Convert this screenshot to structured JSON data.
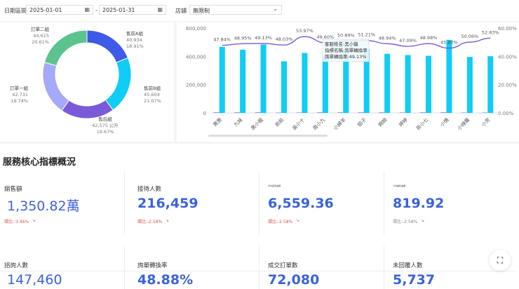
{
  "filter": {
    "date_label": "日期區間",
    "start_date": "2025-01-01",
    "separator": "-",
    "end_date": "2025-01-31",
    "store_label": "店鋪",
    "store_value": "無限制"
  },
  "donut": {
    "segments": [
      {
        "name": "售前A組",
        "value": "40,934",
        "pct": "18.91%",
        "p": 18.91,
        "color": "#3d5be8"
      },
      {
        "name": "售前B組",
        "value": "45,604",
        "pct": "21.07%",
        "p": 21.07,
        "color": "#0fcdf5"
      },
      {
        "name": "售后組",
        "value": "42,575 公升",
        "pct": "19.67%",
        "p": 19.67,
        "color": "#7a5ad8"
      },
      {
        "name": "訂單一組",
        "value": "42,731",
        "pct": "19.74%",
        "p": 19.74,
        "color": "#a4a9f8"
      },
      {
        "name": "訂單二組",
        "value": "44,615",
        "pct": "20.61%",
        "p": 20.61,
        "color": "#5cc38f"
      }
    ]
  },
  "chart_data": {
    "type": "bar+line",
    "categories": [
      "萧萧",
      "九妹",
      "黑小龍",
      "前前",
      "吳小十",
      "周小九",
      "小綿羊",
      "鋁子",
      "婉婉",
      "婷婷",
      "孫小七",
      "小情",
      "小綠蘿",
      "小芳"
    ],
    "series": [
      {
        "type": "bar",
        "values": [
          467000,
          447000,
          484000,
          365000,
          424000,
          410000,
          430000,
          451000,
          418000,
          409000,
          404000,
          517000,
          396000,
          401000
        ],
        "color": "#0fcdf5"
      },
      {
        "type": "bar",
        "values": [
          3000,
          3000,
          3000,
          2000,
          2000,
          3000,
          3000,
          3000,
          3000,
          2000,
          3000,
          3000,
          2000,
          2000
        ],
        "color": "#3d5be8"
      },
      {
        "type": "line",
        "axis": "right",
        "values": [
          47.84,
          48.95,
          49.13,
          48.03,
          53.97,
          49.6,
          50.89,
          51.21,
          48.94,
          47.09,
          48.98,
          45.8,
          50.06,
          52.83
        ],
        "labels": [
          "47.84%",
          "48.95%",
          "49.13%",
          "48.03%",
          "53.97%",
          "49.60%",
          "50.89%",
          "51.21%",
          "48.94%",
          "47.09%",
          "48.98%",
          "45.80%",
          "50.06%",
          "52.83%"
        ],
        "color": "#7a5ad8"
      }
    ],
    "y_left": {
      "ticks": [
        "0",
        "200,000",
        "400,000",
        "600,000"
      ],
      "range": [
        0,
        600000
      ]
    },
    "y_right": {
      "ticks": [
        "0.00%",
        "20.00%",
        "40.00%",
        "60.00%"
      ],
      "range": [
        0,
        60
      ]
    },
    "tooltip": {
      "line1": "客服姓名:黑小龍",
      "line2": "指標名稱:詢單轉換率",
      "line3": "詢單轉換率:49.13%"
    }
  },
  "section": {
    "title": "服務核心指標概況"
  },
  "cards": [
    {
      "label": "銷售額",
      "value": "1,350.82萬",
      "change": "環比:-3.46%"
    },
    {
      "label": "接待人數",
      "value": "216,459",
      "change": "環比:-2.58%"
    },
    {
      "label": "平均接待金額",
      "value": "6,559.36",
      "change": "環比:-2.58%"
    },
    {
      "label": "人均銷售金額",
      "value": "819.92",
      "change": "環比:-2.58%"
    },
    {
      "label": "諮詢人數",
      "value": "147,460"
    },
    {
      "label": "詢單轉換率",
      "value": "48.88%"
    },
    {
      "label": "成交訂單數",
      "value": "72,080"
    },
    {
      "label": "未回覆人數",
      "value": "5,737"
    }
  ]
}
